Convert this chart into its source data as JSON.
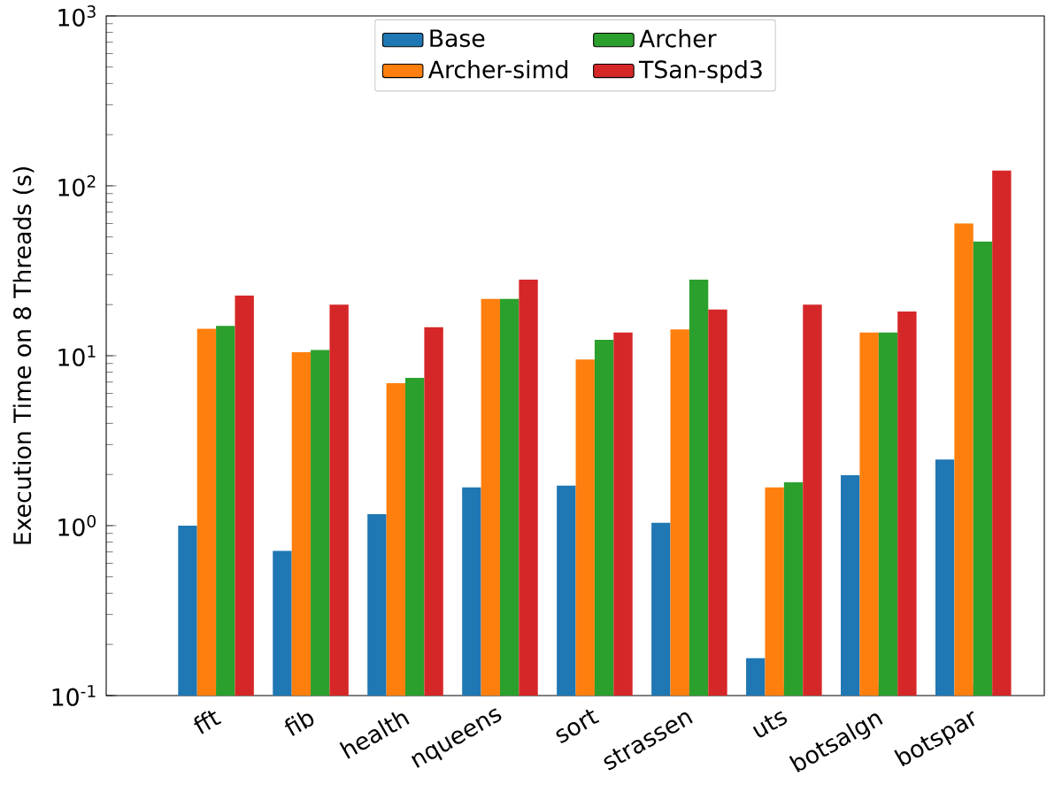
{
  "chart_data": {
    "type": "bar",
    "ylabel": "Execution Time on 8 Threads (s)",
    "categories": [
      "fft",
      "fib",
      "health",
      "nqueens",
      "sort",
      "strassen",
      "uts",
      "botsalgn",
      "botspar"
    ],
    "series": [
      {
        "name": "Base",
        "color": "#1f77b4",
        "values": [
          1.0,
          0.71,
          1.17,
          1.68,
          1.72,
          1.04,
          0.166,
          1.98,
          2.45
        ]
      },
      {
        "name": "Archer-simd",
        "color": "#ff7f0e",
        "values": [
          14.4,
          10.5,
          6.9,
          21.6,
          9.5,
          14.3,
          1.68,
          13.7,
          60
        ]
      },
      {
        "name": "Archer",
        "color": "#2ca02c",
        "values": [
          15.0,
          10.8,
          7.4,
          21.6,
          12.4,
          28,
          1.8,
          13.7,
          47
        ]
      },
      {
        "name": "TSan-spd3",
        "color": "#d62728",
        "values": [
          22.6,
          20.0,
          14.7,
          28,
          13.7,
          18.7,
          20.0,
          18.2,
          123
        ]
      }
    ],
    "log": "y",
    "ylim": [
      0.1,
      1000
    ],
    "yticks": [
      {
        "value": 0.1,
        "label": "10$^{-1}$"
      },
      {
        "value": 1,
        "label": "10$^{0}$"
      },
      {
        "value": 10,
        "label": "10$^{1}$"
      },
      {
        "value": 100,
        "label": "10$^{2}$"
      },
      {
        "value": 1000,
        "label": "10$^{3}$"
      }
    ],
    "legend": "top"
  }
}
